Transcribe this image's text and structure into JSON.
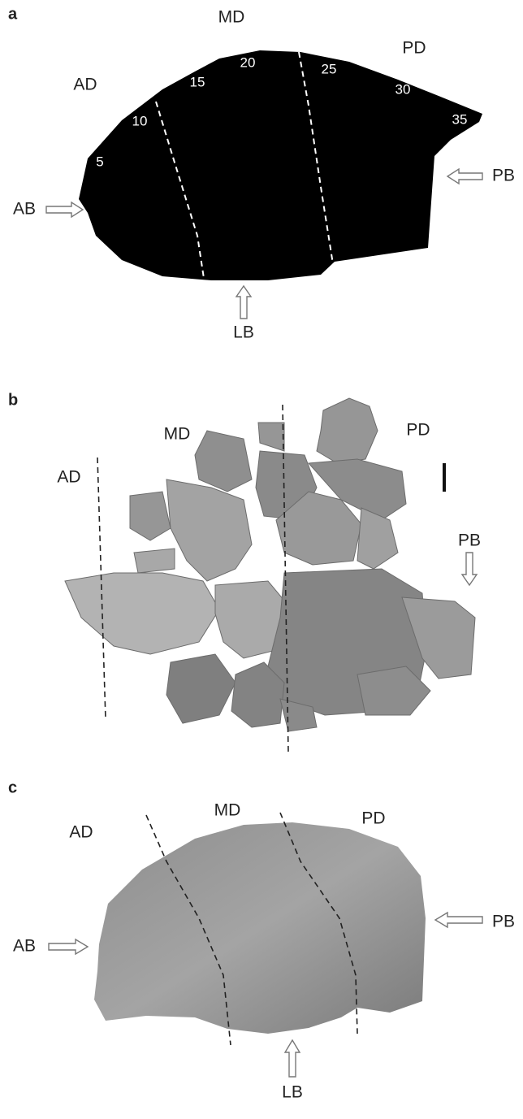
{
  "panels": [
    {
      "letter": "a",
      "regions": [
        "AD",
        "MD",
        "PD"
      ],
      "borders": [
        "AB",
        "PB",
        "LB"
      ],
      "positions": [
        5,
        10,
        15,
        20,
        25,
        30,
        35
      ]
    },
    {
      "letter": "b",
      "regions": [
        "AD",
        "MD",
        "PD"
      ],
      "borders": [
        "PB"
      ]
    },
    {
      "letter": "c",
      "regions": [
        "AD",
        "MD",
        "PD"
      ],
      "borders": [
        "AB",
        "PB",
        "LB"
      ]
    }
  ]
}
